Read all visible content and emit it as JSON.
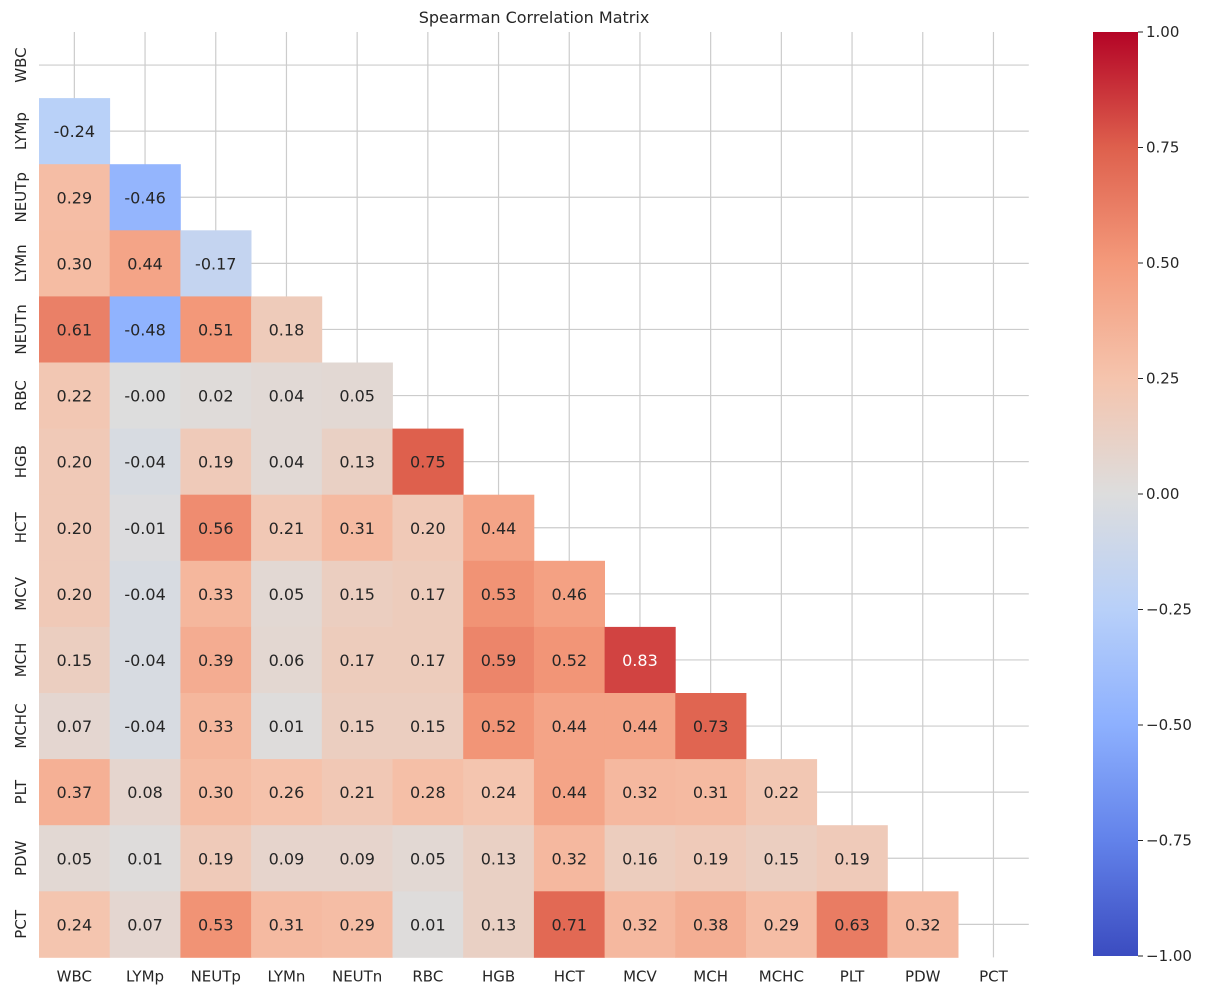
{
  "chart_data": {
    "type": "heatmap",
    "title": "Spearman Correlation Matrix",
    "variables": [
      "WBC",
      "LYMp",
      "NEUTp",
      "LYMn",
      "NEUTn",
      "RBC",
      "HGB",
      "HCT",
      "MCV",
      "MCH",
      "MCHC",
      "PLT",
      "PDW",
      "PCT"
    ],
    "lower_triangle_values": [
      [],
      [
        -0.24
      ],
      [
        0.29,
        -0.46
      ],
      [
        0.3,
        0.44,
        -0.17
      ],
      [
        0.61,
        -0.48,
        0.51,
        0.18
      ],
      [
        0.22,
        -0.0,
        0.02,
        0.04,
        0.05
      ],
      [
        0.2,
        -0.04,
        0.19,
        0.04,
        0.13,
        0.75
      ],
      [
        0.2,
        -0.01,
        0.56,
        0.21,
        0.31,
        0.2,
        0.44
      ],
      [
        0.2,
        -0.04,
        0.33,
        0.05,
        0.15,
        0.17,
        0.53,
        0.46
      ],
      [
        0.15,
        -0.04,
        0.39,
        0.06,
        0.17,
        0.17,
        0.59,
        0.52,
        0.83
      ],
      [
        0.07,
        -0.04,
        0.33,
        0.01,
        0.15,
        0.15,
        0.52,
        0.44,
        0.44,
        0.73
      ],
      [
        0.37,
        0.08,
        0.3,
        0.26,
        0.21,
        0.28,
        0.24,
        0.44,
        0.32,
        0.31,
        0.22
      ],
      [
        0.05,
        0.01,
        0.19,
        0.09,
        0.09,
        0.05,
        0.13,
        0.32,
        0.16,
        0.19,
        0.15,
        0.19
      ],
      [
        0.24,
        0.07,
        0.53,
        0.31,
        0.29,
        0.01,
        0.13,
        0.71,
        0.32,
        0.38,
        0.29,
        0.63,
        0.32
      ]
    ],
    "cell_labels": [
      [],
      [
        "-0.24"
      ],
      [
        "0.29",
        "-0.46"
      ],
      [
        "0.30",
        "0.44",
        "-0.17"
      ],
      [
        "0.61",
        "-0.48",
        "0.51",
        "0.18"
      ],
      [
        "0.22",
        "-0.00",
        "0.02",
        "0.04",
        "0.05"
      ],
      [
        "0.20",
        "-0.04",
        "0.19",
        "0.04",
        "0.13",
        "0.75"
      ],
      [
        "0.20",
        "-0.01",
        "0.56",
        "0.21",
        "0.31",
        "0.20",
        "0.44"
      ],
      [
        "0.20",
        "-0.04",
        "0.33",
        "0.05",
        "0.15",
        "0.17",
        "0.53",
        "0.46"
      ],
      [
        "0.15",
        "-0.04",
        "0.39",
        "0.06",
        "0.17",
        "0.17",
        "0.59",
        "0.52",
        "0.83"
      ],
      [
        "0.07",
        "-0.04",
        "0.33",
        "0.01",
        "0.15",
        "0.15",
        "0.52",
        "0.44",
        "0.44",
        "0.73"
      ],
      [
        "0.37",
        "0.08",
        "0.30",
        "0.26",
        "0.21",
        "0.28",
        "0.24",
        "0.44",
        "0.32",
        "0.31",
        "0.22"
      ],
      [
        "0.05",
        "0.01",
        "0.19",
        "0.09",
        "0.09",
        "0.05",
        "0.13",
        "0.32",
        "0.16",
        "0.19",
        "0.15",
        "0.19"
      ],
      [
        "0.24",
        "0.07",
        "0.53",
        "0.31",
        "0.29",
        "0.01",
        "0.13",
        "0.71",
        "0.32",
        "0.38",
        "0.29",
        "0.63",
        "0.32"
      ]
    ],
    "colormap": "coolwarm",
    "colormap_stops": [
      "#3b4cc0",
      "#dddddd",
      "#b40426"
    ],
    "vmin": -1.0,
    "vmax": 1.0,
    "mask": "upper triangle including diagonal",
    "grid": true,
    "colorbar": {
      "position": "right",
      "values": [
        1.0,
        0.75,
        0.5,
        0.25,
        0.0,
        -0.25,
        -0.5,
        -0.75,
        -1.0
      ],
      "labels": [
        "1.00",
        "0.75",
        "0.50",
        "0.25",
        "0.00",
        "−0.25",
        "−0.50",
        "−0.75",
        "−1.00"
      ]
    }
  }
}
